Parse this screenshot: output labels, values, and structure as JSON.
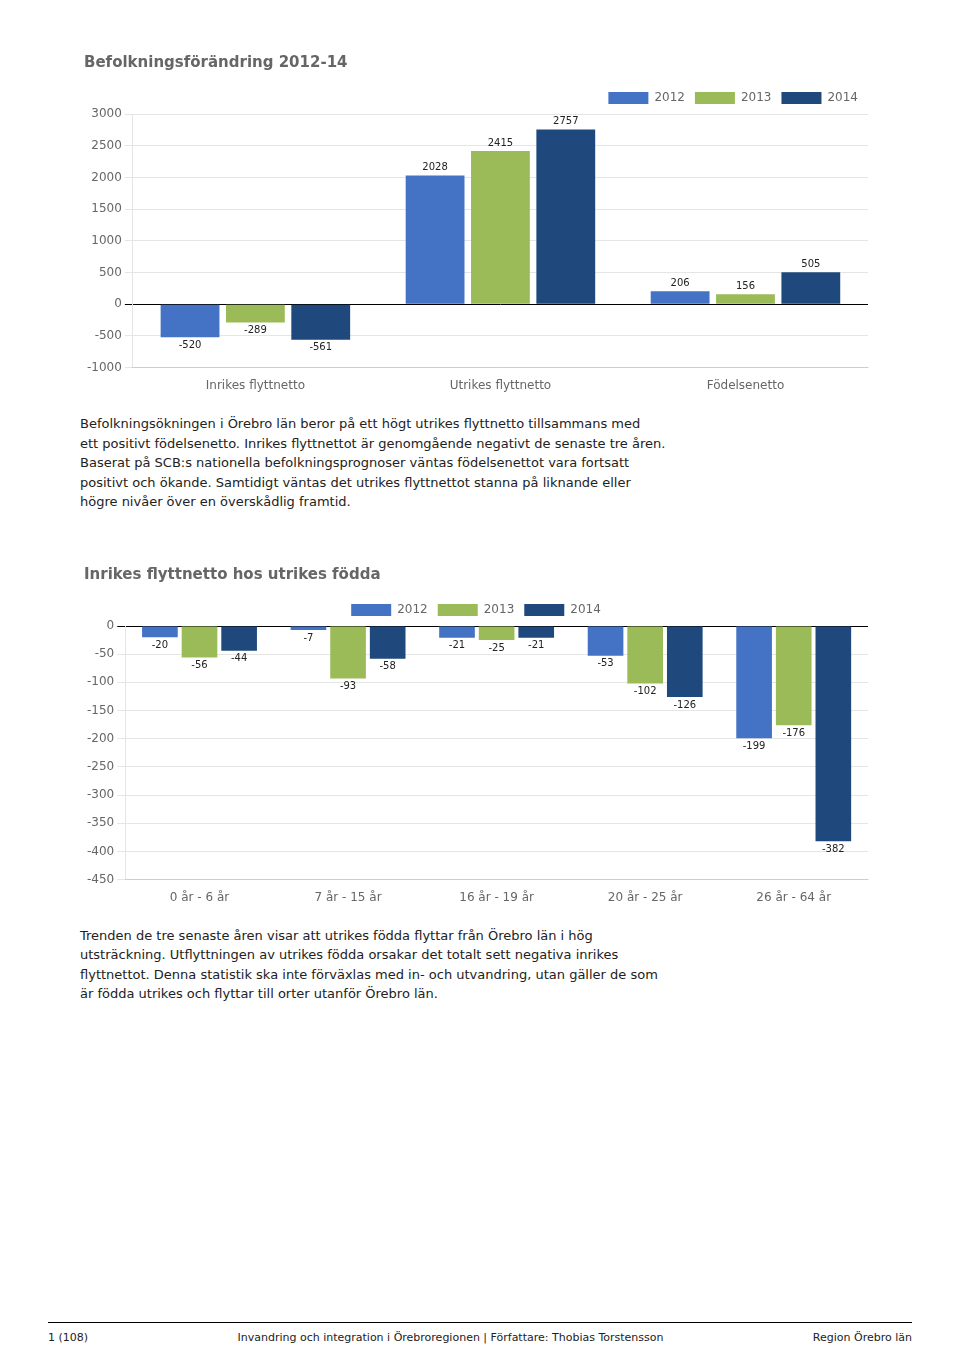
{
  "chart_data": [
    {
      "type": "bar",
      "title": "Befolkningsförändring 2012-14",
      "categories": [
        "Inrikes flyttnetto",
        "Utrikes flyttnetto",
        "Födelsenetto"
      ],
      "series": [
        {
          "name": "2012",
          "color": "#4472C4",
          "values": [
            -520,
            2028,
            206
          ]
        },
        {
          "name": "2013",
          "color": "#9BBB59",
          "values": [
            -289,
            2415,
            156
          ]
        },
        {
          "name": "2014",
          "color": "#1F497D",
          "values": [
            -561,
            2757,
            505
          ]
        }
      ],
      "ylim": [
        -1000,
        3000
      ],
      "yticks": [
        -1000,
        -500,
        0,
        500,
        1000,
        1500,
        2000,
        2500,
        3000
      ],
      "grid": true,
      "legend": "upper right",
      "data_labels": true,
      "annotations": [
        "Befolkningsökningen i Örebro län beror på ett högt utrikes flyttnetto tillsammans med\nett positivt födelsenetto. Inrikes flyttnettot är genomgående negativt de senaste tre åren.\nBaserat på SCB:s nationella befolkningsprognoser väntas födelsenettot vara fortsatt\npositivt och ökande. Samtidigt väntas det utrikes flyttnettot stanna på liknande eller\nhögre nivåer över en överskådlig framtid."
      ]
    },
    {
      "type": "bar",
      "title": "Inrikes flyttnetto hos utrikes födda",
      "categories": [
        "0 år - 6 år",
        "7 år - 15 år",
        "16 år - 19 år",
        "20 år - 25 år",
        "26 år - 64 år"
      ],
      "series": [
        {
          "name": "2012",
          "color": "#4472C4",
          "values": [
            -20,
            -7,
            -21,
            -53,
            -199
          ]
        },
        {
          "name": "2013",
          "color": "#9BBB59",
          "values": [
            -56,
            -93,
            -25,
            -102,
            -176
          ]
        },
        {
          "name": "2014",
          "color": "#1F497D",
          "values": [
            -44,
            -58,
            -21,
            -126,
            -382
          ]
        }
      ],
      "ylim": [
        -450,
        0
      ],
      "yticks": [
        -450,
        -400,
        -350,
        -300,
        -250,
        -200,
        -150,
        -100,
        -50,
        0
      ],
      "grid": true,
      "legend": "upper center",
      "data_labels": true,
      "annotations": [
        "Trenden de tre senaste åren visar att utrikes födda flyttar från Örebro län i hög\nutsträckning. Utflyttningen av utrikes födda orsakar det totalt sett negativa inrikes\nflyttnettot. Denna statistik ska inte förväxlas med in- och utvandring, utan gäller de som\när födda utrikes och flyttar till orter utanför Örebro län."
      ]
    }
  ],
  "footer": [
    "1 (108)",
    "Invandring och integration i Örebroregionen | Författare: Thobias Torstensson",
    "Region Örebro län"
  ]
}
